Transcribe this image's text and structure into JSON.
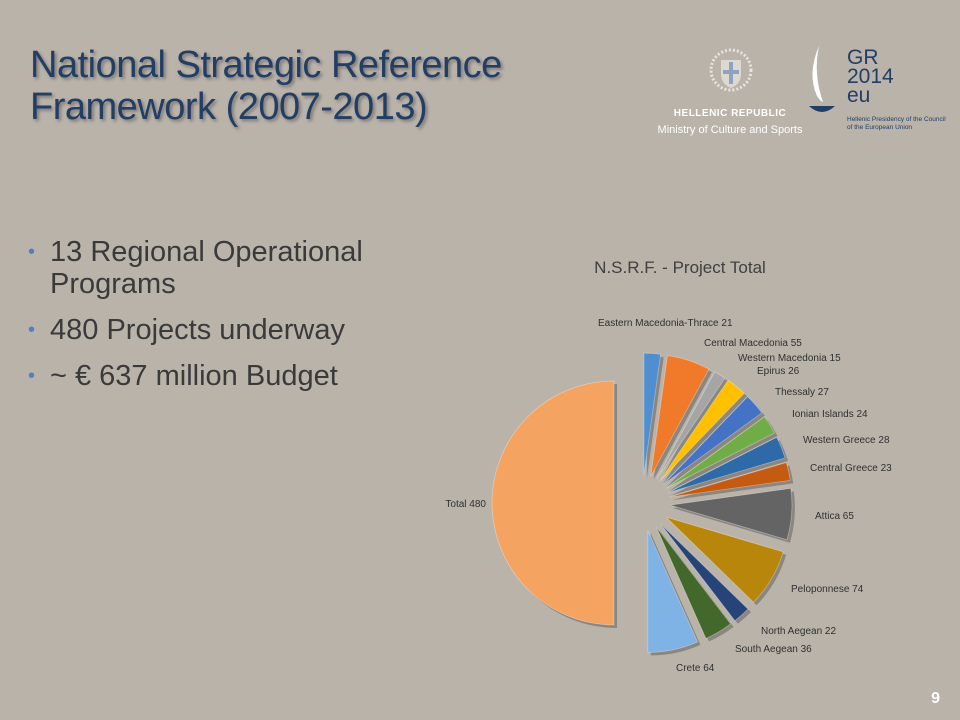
{
  "slide": {
    "title_line1": "National Strategic Reference",
    "title_line2": "Framework (2007-2013)",
    "page_number": "9"
  },
  "logos": {
    "republic_name": "HELLENIC REPUBLIC",
    "ministry": "Ministry of Culture and Sports",
    "presidency_line1": "GR",
    "presidency_line2": "2014",
    "presidency_line3": "eu",
    "presidency_caption_line1": "Hellenic Presidency of the Council",
    "presidency_caption_line2": "of the European Union"
  },
  "bullets": [
    {
      "line1": "13 Regional Operational",
      "line2": "Programs"
    },
    {
      "line1": "480 Projects underway",
      "line2": ""
    },
    {
      "line1": "~ € 637 million Budget",
      "line2": ""
    }
  ],
  "colors": {
    "title": "#213e66",
    "bullet": "#4f81bd",
    "background": "#bab3aa"
  },
  "chart_data": {
    "type": "pie",
    "title": "N.S.R.F. - Project Total",
    "exploded": true,
    "slices": [
      {
        "label": "Eastern Macedonia-Thrace",
        "value": 21,
        "color": "#4f8fd0"
      },
      {
        "label": "Central Macedonia",
        "value": 55,
        "color": "#f07a2a"
      },
      {
        "label": "Western Macedonia",
        "value": 15,
        "color": "#a5a5a5"
      },
      {
        "label": "Epirus",
        "value": 26,
        "color": "#ffc000"
      },
      {
        "label": "Thessaly",
        "value": 27,
        "color": "#4472c4"
      },
      {
        "label": "Ionian Islands",
        "value": 24,
        "color": "#70ad47"
      },
      {
        "label": "Western Greece",
        "value": 28,
        "color": "#2e6aa8"
      },
      {
        "label": "Central Greece",
        "value": 23,
        "color": "#c55a11"
      },
      {
        "label": "Attica",
        "value": 65,
        "color": "#646464"
      },
      {
        "label": "Peloponnese",
        "value": 74,
        "color": "#b8860b"
      },
      {
        "label": "North Aegean",
        "value": 22,
        "color": "#264478"
      },
      {
        "label": "South Aegean",
        "value": 36,
        "color": "#43682b"
      },
      {
        "label": "Crete",
        "value": 64,
        "color": "#7fb2e5"
      },
      {
        "label": "Total",
        "value": 480,
        "color": "#f4a460"
      }
    ]
  }
}
